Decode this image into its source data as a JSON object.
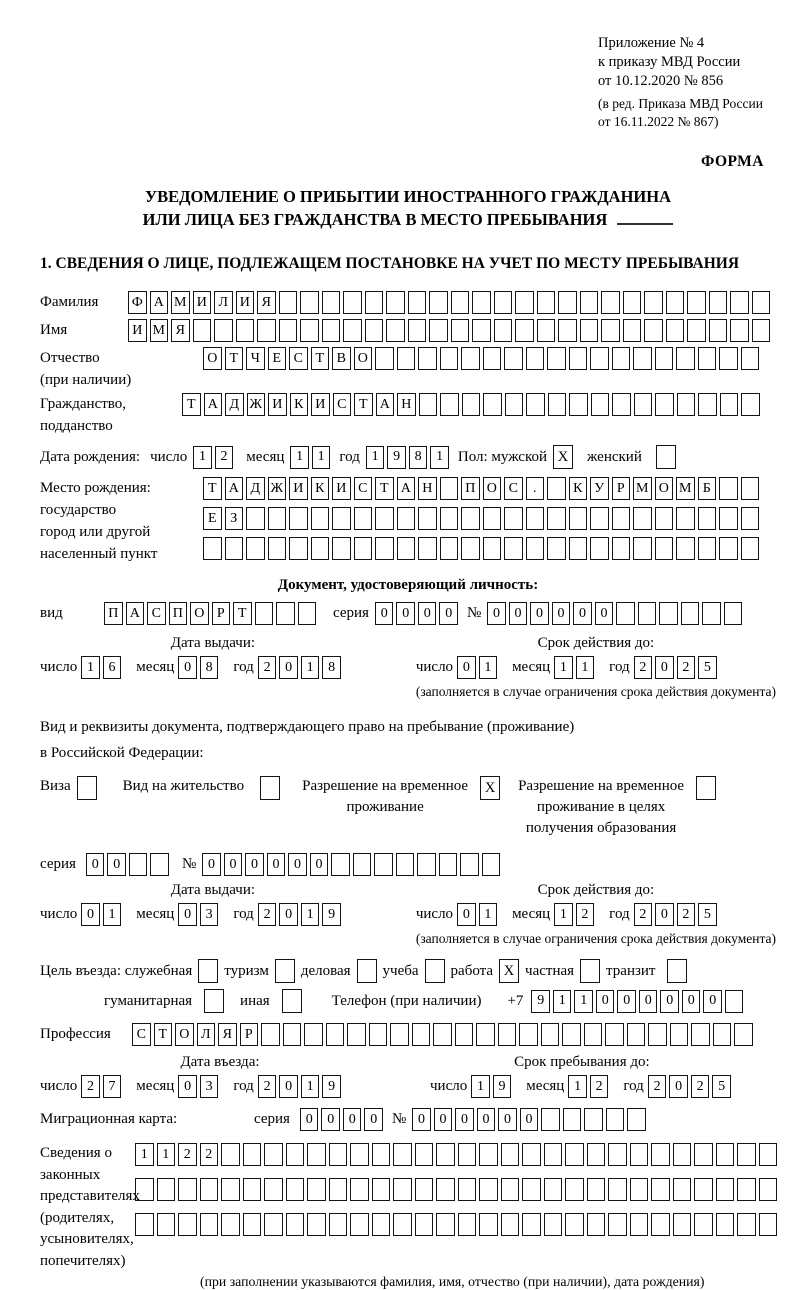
{
  "meta": {
    "appendix": [
      "Приложение № 4",
      "к приказу МВД России",
      "от 10.12.2020 № 856"
    ],
    "edition": [
      "(в ред. Приказа МВД России",
      "от 16.11.2022 № 867)"
    ],
    "form_word": "ФОРМА"
  },
  "title": {
    "l1": "УВЕДОМЛЕНИЕ О ПРИБЫТИИ ИНОСТРАННОГО ГРАЖДАНИНА",
    "l2": "ИЛИ ЛИЦА БЕЗ ГРАЖДАНСТВА В МЕСТО ПРЕБЫВАНИЯ"
  },
  "section1_heading": "1. СВЕДЕНИЯ О ЛИЦЕ, ПОДЛЕЖАЩЕМ ПОСТАНОВКЕ НА УЧЕТ ПО МЕСТУ ПРЕБЫВАНИЯ",
  "labels": {
    "surname": "Фамилия",
    "name": "Имя",
    "patronymic_1": "Отчество",
    "patronymic_2": "(при наличии)",
    "citizenship_1": "Гражданство,",
    "citizenship_2": "подданство",
    "birthdate": "Дата рождения:",
    "day": "число",
    "month": "месяц",
    "year": "год",
    "sex_male": "Пол: мужской",
    "sex_female": "женский",
    "birthplace_1": "Место рождения:",
    "birthplace_2": "государство",
    "birthplace_3": "город или другой",
    "birthplace_4": "населенный пункт",
    "doc_heading": "Документ, удостоверяющий личность:",
    "doc_type": "вид",
    "series": "серия",
    "number": "№",
    "issue_date": "Дата выдачи:",
    "valid_until": "Срок действия до:",
    "valid_note": "(заполняется в случае ограничения срока действия документа)",
    "permit_line1": "Вид и реквизиты документа, подтверждающего право на пребывание (проживание)",
    "permit_line2": "в Российской Федерации:",
    "visa": "Виза",
    "residence_permit": "Вид на жительство",
    "temp_permit_1": "Разрешение на временное",
    "temp_permit_2": "проживание",
    "temp_edu_1": "Разрешение на временное",
    "temp_edu_2": "проживание в целях",
    "temp_edu_3": "получения образования",
    "purpose": "Цель въезда: служебная",
    "tourism": "туризм",
    "business": "деловая",
    "study": "учеба",
    "work": "работа",
    "private": "частная",
    "transit": "транзит",
    "humanitarian": "гуманитарная",
    "other": "иная",
    "phone": "Телефон (при наличии)",
    "phone_prefix": "+7",
    "profession": "Профессия",
    "entry_date": "Дата въезда:",
    "stay_until": "Срок пребывания до:",
    "migration_card": "Миграционная карта:",
    "representatives": [
      "Сведения о",
      "законных",
      "представителях",
      "(родителях,",
      "усыновителях,",
      "попечителях)"
    ],
    "representatives_note": "(при заполнении указываются фамилия, имя, отчество (при наличии), дата рождения)"
  },
  "cells": {
    "surname": {
      "v": "ФАМИЛИЯ",
      "n": 30
    },
    "name": {
      "v": "ИМЯ",
      "n": 30
    },
    "patronymic": {
      "v": "ОТЧЕСТВО",
      "n": 26
    },
    "citizenship": {
      "v": "ТАДЖИКИСТАН",
      "n": 27
    },
    "birth_day": {
      "v": "12",
      "n": 2
    },
    "birth_month": {
      "v": "11",
      "n": 2
    },
    "birth_year": {
      "v": "1981",
      "n": 4
    },
    "birthplace1": {
      "v": "ТАДЖИКИСТАН ПОС. КУРМОМБ",
      "n": 26
    },
    "birthplace2": {
      "v": "ЕЗ",
      "n": 26
    },
    "birthplace3": {
      "v": "",
      "n": 26
    },
    "doc_type": {
      "v": "ПАСПОРТ",
      "n": 10
    },
    "doc_series": {
      "v": "0000",
      "n": 4
    },
    "doc_number": {
      "v": "000000",
      "n": 12
    },
    "doc_issue_day": {
      "v": "16",
      "n": 2
    },
    "doc_issue_month": {
      "v": "08",
      "n": 2
    },
    "doc_issue_year": {
      "v": "2018",
      "n": 4
    },
    "doc_valid_day": {
      "v": "01",
      "n": 2
    },
    "doc_valid_month": {
      "v": "11",
      "n": 2
    },
    "doc_valid_year": {
      "v": "2025",
      "n": 4
    },
    "permit_series": {
      "v": "00",
      "n": 4
    },
    "permit_number": {
      "v": "000000",
      "n": 14
    },
    "permit_issue_day": {
      "v": "01",
      "n": 2
    },
    "permit_issue_month": {
      "v": "03",
      "n": 2
    },
    "permit_issue_year": {
      "v": "2019",
      "n": 4
    },
    "permit_valid_day": {
      "v": "01",
      "n": 2
    },
    "permit_valid_month": {
      "v": "12",
      "n": 2
    },
    "permit_valid_year": {
      "v": "2025",
      "n": 4
    },
    "phone": {
      "v": "911000000",
      "n": 10
    },
    "profession": {
      "v": "СТОЛЯР",
      "n": 29
    },
    "entry_day": {
      "v": "27",
      "n": 2
    },
    "entry_month": {
      "v": "03",
      "n": 2
    },
    "entry_year": {
      "v": "2019",
      "n": 4
    },
    "stay_day": {
      "v": "19",
      "n": 2
    },
    "stay_month": {
      "v": "12",
      "n": 2
    },
    "stay_year": {
      "v": "2025",
      "n": 4
    },
    "migcard_series": {
      "v": "0000",
      "n": 4
    },
    "migcard_number": {
      "v": "000000",
      "n": 11
    },
    "rep1": {
      "v": "1122",
      "n": 30
    },
    "rep2": {
      "v": "",
      "n": 30
    },
    "rep3": {
      "v": "",
      "n": 30
    }
  },
  "checks": {
    "male": "X",
    "female": "",
    "visa": "",
    "residence": "",
    "temp_permit": "X",
    "temp_edu": "",
    "official": "",
    "tourism": "",
    "business": "",
    "study": "",
    "work": "X",
    "private": "",
    "transit": "",
    "humanitarian": "",
    "other": ""
  }
}
